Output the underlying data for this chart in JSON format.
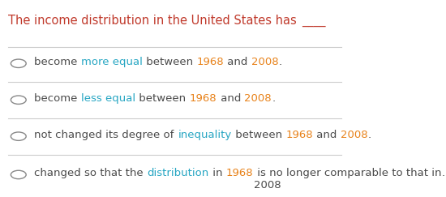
{
  "title_parts": [
    {
      "text": "The income distribution in the United States has ",
      "color": "#c0392b"
    },
    {
      "text": "____",
      "color": "#c0392b"
    }
  ],
  "options": [
    {
      "parts": [
        {
          "text": "become ",
          "color": "#4a4a4a"
        },
        {
          "text": "more equal",
          "color": "#27a6c3"
        },
        {
          "text": " between ",
          "color": "#4a4a4a"
        },
        {
          "text": "1968",
          "color": "#e8821a"
        },
        {
          "text": " and ",
          "color": "#4a4a4a"
        },
        {
          "text": "2008",
          "color": "#e8821a"
        },
        {
          "text": ".",
          "color": "#4a4a4a"
        }
      ]
    },
    {
      "parts": [
        {
          "text": "become ",
          "color": "#4a4a4a"
        },
        {
          "text": "less equal",
          "color": "#27a6c3"
        },
        {
          "text": " between ",
          "color": "#4a4a4a"
        },
        {
          "text": "1968",
          "color": "#e8821a"
        },
        {
          "text": " and ",
          "color": "#4a4a4a"
        },
        {
          "text": "2008",
          "color": "#e8821a"
        },
        {
          "text": ".",
          "color": "#4a4a4a"
        }
      ]
    },
    {
      "parts": [
        {
          "text": "not changed its degree of ",
          "color": "#4a4a4a"
        },
        {
          "text": "inequality",
          "color": "#27a6c3"
        },
        {
          "text": " between ",
          "color": "#4a4a4a"
        },
        {
          "text": "1968",
          "color": "#e8821a"
        },
        {
          "text": " and ",
          "color": "#4a4a4a"
        },
        {
          "text": "2008",
          "color": "#e8821a"
        },
        {
          "text": ".",
          "color": "#4a4a4a"
        }
      ]
    },
    {
      "parts": [
        {
          "text": "changed so that the ",
          "color": "#4a4a4a"
        },
        {
          "text": "distribution",
          "color": "#27a6c3"
        },
        {
          "text": " in ",
          "color": "#4a4a4a"
        },
        {
          "text": "1968",
          "color": "#e8821a"
        },
        {
          "text": " is no longer comparable to that in\n2008",
          "color": "#4a4a4a"
        },
        {
          "text": ".",
          "color": "#4a4a4a"
        }
      ]
    }
  ],
  "background_color": "#ffffff",
  "circle_color": "#888888",
  "separator_color": "#cccccc",
  "font_size": 9.5,
  "title_font_size": 10.5
}
